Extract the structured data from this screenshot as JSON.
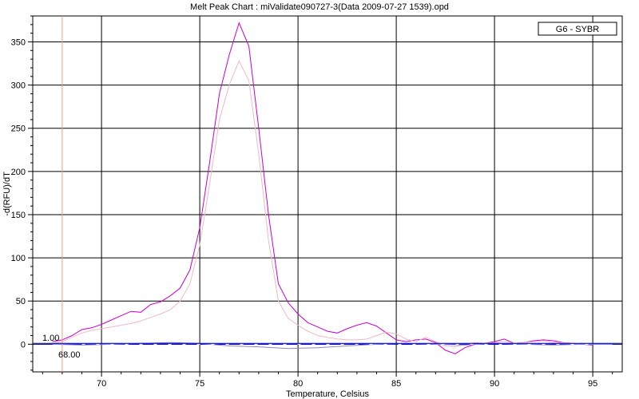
{
  "chart_data": {
    "type": "line",
    "title": "Melt Peak Chart : miValidate090727-3(Data 2009-07-27 1539).opd",
    "xlabel": "Temperature, Celsius",
    "ylabel": "-d(RFU)/dT",
    "xlim": [
      66.5,
      96.5
    ],
    "ylim": [
      -32,
      380
    ],
    "x_ticks": [
      70,
      75,
      80,
      85,
      90,
      95
    ],
    "y_ticks": [
      0,
      50,
      100,
      150,
      200,
      250,
      300,
      350
    ],
    "x_minor_step": 1,
    "y_minor_step": 10,
    "grid": true,
    "legend": {
      "position": "top-right",
      "entries": [
        "G6 - SYBR"
      ]
    },
    "threshold": {
      "value": 1,
      "label": "1.00",
      "color": "#0000cc"
    },
    "begin_marker": {
      "value": 68,
      "label": "68.00",
      "color": "#e8a070"
    },
    "series": [
      {
        "color": "#cc00cc",
        "x": [
          67.5,
          68.0,
          68.5,
          69.0,
          69.5,
          70.0,
          70.5,
          71.0,
          71.5,
          72.0,
          72.5,
          73.0,
          73.5,
          74.0,
          74.5,
          75.0,
          75.5,
          76.0,
          76.5,
          77.0,
          77.5,
          78.0,
          78.5,
          79.0,
          79.5,
          80.0,
          80.5,
          81.0,
          81.5,
          82.0,
          82.5,
          83.0,
          83.5,
          84.0,
          84.5,
          85.0,
          85.5,
          86.0,
          86.5,
          87.0,
          87.5,
          88.0,
          88.5,
          89.0,
          89.5,
          90.0,
          90.5,
          91.0,
          91.5,
          92.0,
          92.5,
          93.0,
          93.5,
          94.0,
          94.5,
          95.0
        ],
        "y": [
          3,
          5,
          10,
          17,
          19,
          23,
          28,
          33,
          38,
          37,
          46,
          49,
          56,
          65,
          86,
          135,
          210,
          290,
          335,
          372,
          345,
          250,
          150,
          70,
          48,
          35,
          25,
          20,
          15,
          13,
          18,
          22,
          25,
          21,
          13,
          5,
          3,
          5,
          6,
          2,
          -7,
          -11,
          -4,
          0,
          1,
          3,
          6,
          1,
          2,
          4,
          5,
          4,
          2,
          1,
          0,
          -1
        ]
      },
      {
        "color": "#f0b8c8",
        "x": [
          67.5,
          68.0,
          68.5,
          69.0,
          69.5,
          70.0,
          70.5,
          71.0,
          71.5,
          72.0,
          72.5,
          73.0,
          73.5,
          74.0,
          74.5,
          75.0,
          75.5,
          76.0,
          76.5,
          77.0,
          77.5,
          78.0,
          78.5,
          79.0,
          79.5,
          80.0,
          80.5,
          81.0,
          81.5,
          82.0,
          82.5,
          83.0,
          83.5,
          84.0,
          84.5,
          85.0,
          85.5,
          86.0,
          86.5,
          87.0,
          87.5,
          88.0,
          88.5,
          89.0,
          89.5,
          90.0,
          90.5,
          91.0,
          91.5,
          92.0,
          92.5,
          93.0,
          93.5,
          94.0,
          94.5,
          95.0
        ],
        "y": [
          1,
          3,
          8,
          13,
          16,
          18,
          20,
          22,
          24,
          27,
          31,
          35,
          40,
          50,
          70,
          115,
          185,
          260,
          300,
          328,
          305,
          220,
          120,
          50,
          30,
          22,
          15,
          10,
          8,
          6,
          5,
          5,
          6,
          10,
          14,
          12,
          6,
          3,
          8,
          3,
          -2,
          -3,
          0,
          2,
          1,
          2,
          3,
          1,
          2,
          3,
          4,
          2,
          2,
          1,
          0,
          0
        ]
      },
      {
        "color": "#0000cc",
        "x": [
          67.5,
          70.0,
          75.0,
          80.0,
          85.0,
          90.0,
          96.0
        ],
        "y": [
          0,
          0,
          0,
          0,
          0,
          0,
          0
        ]
      },
      {
        "color": "#8888cc",
        "x": [
          67.5,
          69.0,
          70.5,
          72.0,
          73.5,
          75.0,
          76.5,
          78.0,
          79.5,
          81.0,
          82.5,
          84.0,
          85.5,
          87.0,
          88.5,
          90.0,
          91.5,
          93.0,
          94.5,
          96.0
        ],
        "y": [
          0,
          -1,
          0,
          1,
          2,
          1,
          -2,
          -3,
          -5,
          -4,
          -2,
          0,
          1,
          0,
          -1,
          1,
          0,
          -1,
          0,
          0
        ]
      },
      {
        "color": "#ffffff",
        "x": [
          69.0,
          71.0,
          73.0,
          75.0,
          77.0,
          79.0,
          81.0,
          83.0,
          85.0,
          87.0,
          89.0,
          91.0,
          93.0,
          95.0
        ],
        "y": [
          0,
          0,
          0,
          0,
          0,
          0,
          0,
          0,
          0,
          0,
          0,
          0,
          0,
          0
        ]
      }
    ]
  }
}
